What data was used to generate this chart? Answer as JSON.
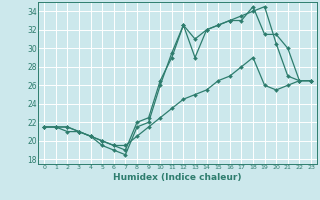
{
  "xlabel": "Humidex (Indice chaleur)",
  "bg_color": "#cce8ec",
  "grid_color": "#ffffff",
  "line_color": "#2e7d6e",
  "xlim": [
    -0.5,
    23.5
  ],
  "ylim": [
    17.5,
    35.0
  ],
  "xticks": [
    0,
    1,
    2,
    3,
    4,
    5,
    6,
    7,
    8,
    9,
    10,
    11,
    12,
    13,
    14,
    15,
    16,
    17,
    18,
    19,
    20,
    21,
    22,
    23
  ],
  "yticks": [
    18,
    20,
    22,
    24,
    26,
    28,
    30,
    32,
    34
  ],
  "line1_x": [
    0,
    1,
    2,
    3,
    4,
    5,
    6,
    7,
    8,
    9,
    10,
    11,
    12,
    13,
    14,
    15,
    16,
    17,
    18,
    19,
    20,
    21,
    22,
    23
  ],
  "line1_y": [
    21.5,
    21.5,
    21.5,
    21.0,
    20.5,
    20.0,
    19.5,
    19.0,
    22.0,
    22.5,
    26.5,
    29.0,
    32.5,
    31.0,
    32.0,
    32.5,
    33.0,
    33.5,
    34.0,
    34.5,
    30.5,
    27.0,
    26.5,
    26.5
  ],
  "line2_x": [
    0,
    1,
    2,
    3,
    4,
    5,
    6,
    7,
    8,
    9,
    10,
    11,
    12,
    13,
    14,
    15,
    16,
    17,
    18,
    19,
    20,
    21,
    22,
    23
  ],
  "line2_y": [
    21.5,
    21.5,
    21.0,
    21.0,
    20.5,
    19.5,
    19.0,
    18.5,
    21.5,
    22.0,
    26.0,
    29.5,
    32.5,
    29.0,
    32.0,
    32.5,
    33.0,
    33.0,
    34.5,
    31.5,
    31.5,
    30.0,
    26.5,
    26.5
  ],
  "line3_x": [
    0,
    1,
    2,
    3,
    4,
    5,
    6,
    7,
    8,
    9,
    10,
    11,
    12,
    13,
    14,
    15,
    16,
    17,
    18,
    19,
    20,
    21,
    22,
    23
  ],
  "line3_y": [
    21.5,
    21.5,
    21.5,
    21.0,
    20.5,
    20.0,
    19.5,
    19.5,
    20.5,
    21.5,
    22.5,
    23.5,
    24.5,
    25.0,
    25.5,
    26.5,
    27.0,
    28.0,
    29.0,
    26.0,
    25.5,
    26.0,
    26.5,
    26.5
  ]
}
